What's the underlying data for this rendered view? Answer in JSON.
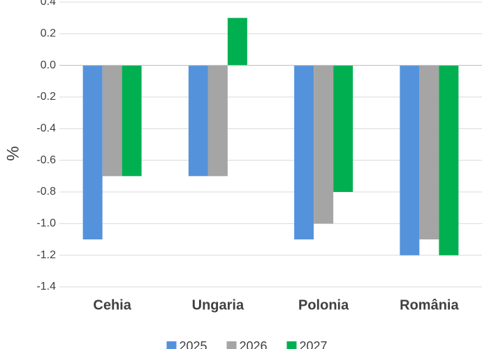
{
  "chart_data": {
    "type": "bar",
    "y_label": "%",
    "categories": [
      "Cehia",
      "Ungaria",
      "Polonia",
      "România"
    ],
    "series": [
      {
        "name": "2025",
        "color": "#5592dc",
        "values": [
          -1.1,
          -0.7,
          -1.1,
          -1.2
        ]
      },
      {
        "name": "2026",
        "color": "#a5a5a5",
        "values": [
          -0.7,
          -0.7,
          -1.0,
          -1.1
        ]
      },
      {
        "name": "2027",
        "color": "#00b050",
        "values": [
          -0.7,
          0.3,
          -0.8,
          -1.2
        ]
      }
    ],
    "ylim": [
      -1.4,
      0.4
    ],
    "yticks": [
      -1.4,
      -1.2,
      {
        "value": -1,
        "label": "-1.0"
      },
      -0.8,
      -0.6,
      -0.4,
      -0.2,
      {
        "value": 0,
        "label": "0.0"
      },
      0.2,
      0.4
    ],
    "grid": true,
    "legend": "bottom"
  }
}
